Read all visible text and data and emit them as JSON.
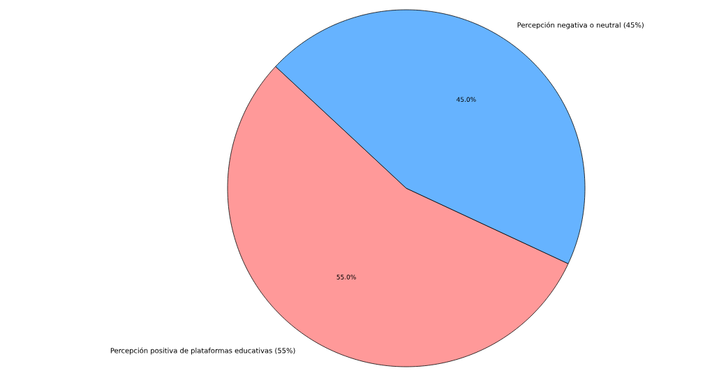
{
  "chart_data": {
    "type": "pie",
    "categories": [
      "Percepción positiva de plataformas educativas (55%)",
      "Percepción negativa o neutral (45%)"
    ],
    "values": [
      55,
      45
    ],
    "colors": [
      "#ff9999",
      "#66b3ff"
    ],
    "value_labels": [
      "55.0%",
      "45.0%"
    ]
  }
}
